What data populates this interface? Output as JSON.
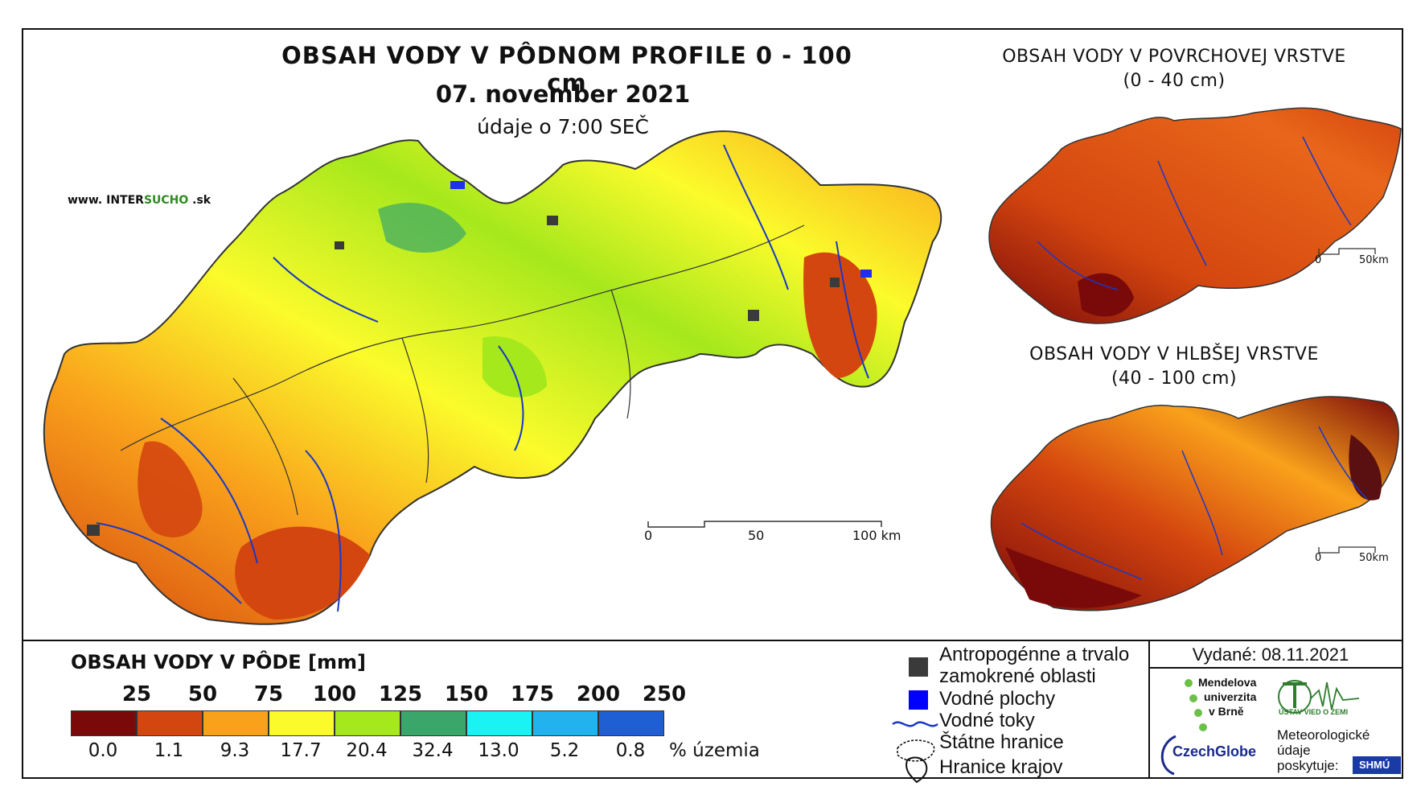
{
  "main": {
    "title": "OBSAH VODY V PÔDNOM PROFILE 0 - 100 cm",
    "date": "07. november 2021",
    "time": "údaje o 7:00 SEČ",
    "website_prefix": "www. ",
    "website_a": "INTER",
    "website_b": "SUCHO",
    "website_c": " .sk",
    "scale_labels": [
      "0",
      "50",
      "100 km"
    ]
  },
  "inset_top": {
    "title": "OBSAH VODY V POVRCHOVEJ VRSTVE",
    "subtitle": "(0 - 40 cm)",
    "scale_labels": [
      "0",
      "50km"
    ]
  },
  "inset_bottom": {
    "title": "OBSAH VODY V HLBŠEJ VRSTVE",
    "subtitle": "(40 - 100 cm)",
    "scale_labels": [
      "0",
      "50km"
    ]
  },
  "legend": {
    "title": "OBSAH VODY V PÔDE [mm]",
    "thresholds": [
      "25",
      "50",
      "75",
      "100",
      "125",
      "150",
      "175",
      "200",
      "250"
    ],
    "classes": [
      {
        "color": "#7a0a0a",
        "percent": "0.0"
      },
      {
        "color": "#d4460f",
        "percent": "1.1"
      },
      {
        "color": "#f9a11b",
        "percent": "9.3"
      },
      {
        "color": "#fbfb2b",
        "percent": "17.7"
      },
      {
        "color": "#a5e81c",
        "percent": "20.4"
      },
      {
        "color": "#3aa66a",
        "percent": "32.4"
      },
      {
        "color": "#19f3f3",
        "percent": "13.0"
      },
      {
        "color": "#22b2ee",
        "percent": "5.2"
      },
      {
        "color": "#1f5fd4",
        "percent": "0.8"
      }
    ],
    "unit": "% územia"
  },
  "symbols": {
    "anthropogenic_line1": "Antropogénne a trvalo",
    "anthropogenic_line2": "zamokrené oblasti",
    "water_bodies": "Vodné plochy",
    "rivers": "Vodné toky",
    "state_border": "Štátne hranice",
    "region_border": "Hranice krajov"
  },
  "credits": {
    "issued": "Vydané: 08.11.2021",
    "mendel_1": "Mendelova",
    "mendel_2": "univerzita",
    "mendel_3": "v Brně",
    "czechglobe": "CzechGlobe",
    "ustav": "ÚSTAV VIED O ZEMI",
    "met_1": "Meteorologické",
    "met_2": "údaje",
    "met_3": "poskytuje:",
    "shmu": "SHMÚ"
  }
}
